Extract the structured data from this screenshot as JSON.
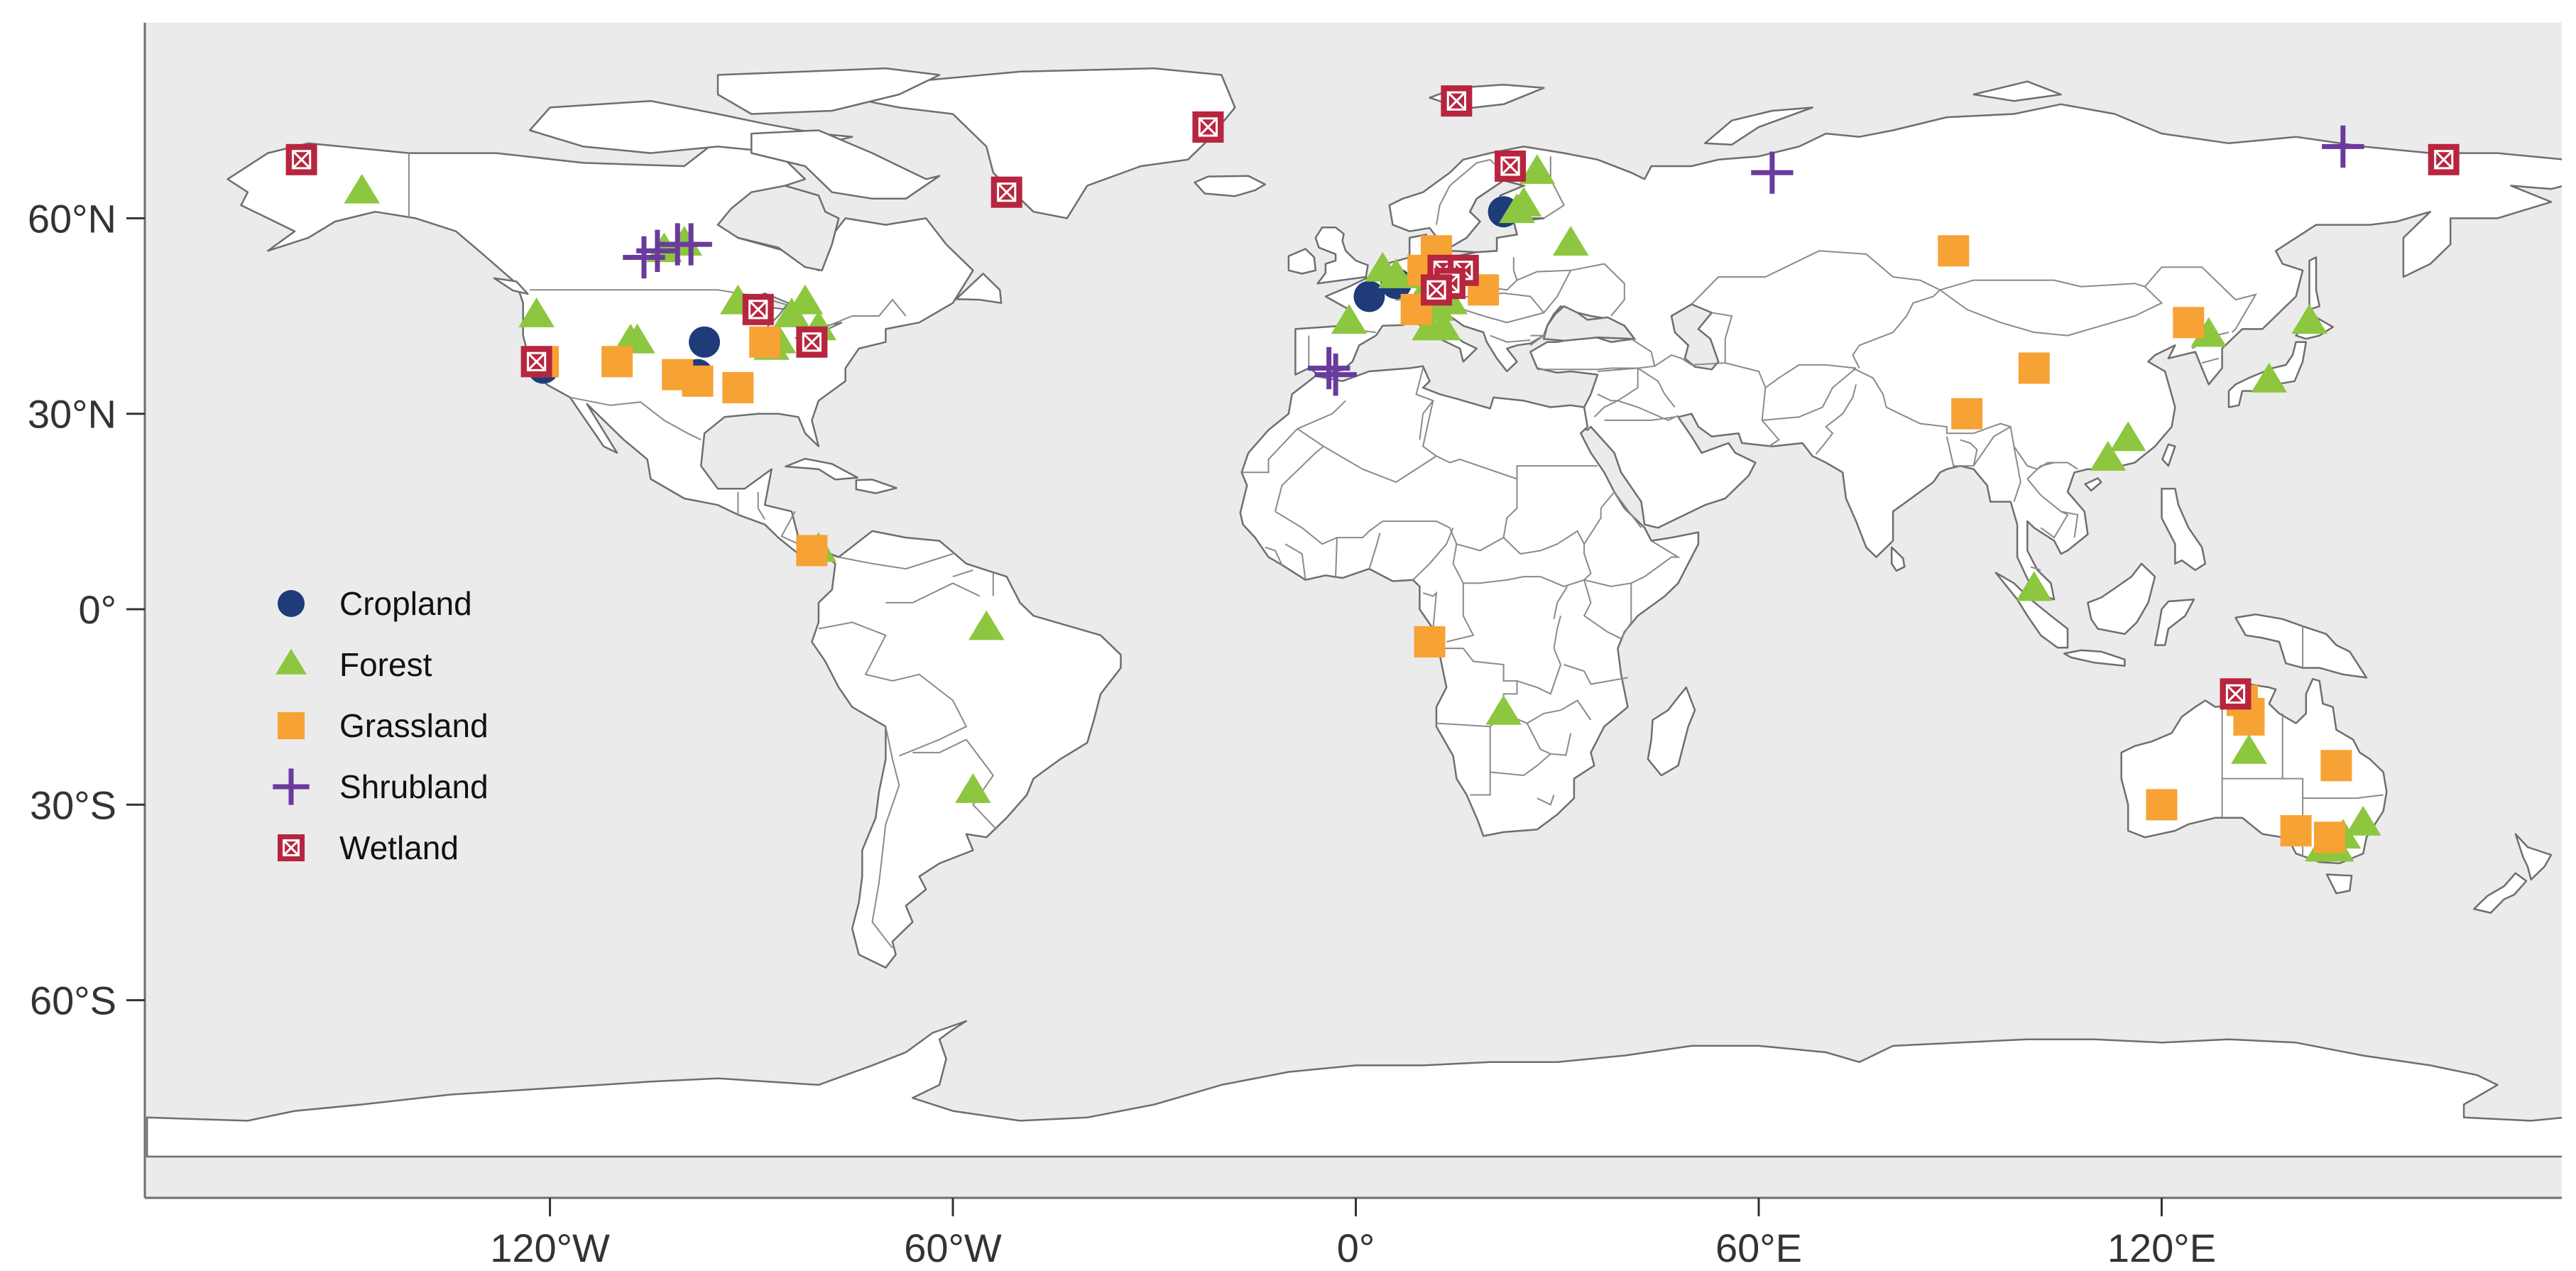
{
  "map": {
    "type": "scatter-map",
    "projection": "equirectangular",
    "xlim": [
      -180,
      180
    ],
    "ylim": [
      -90,
      90
    ],
    "x_ticks": [
      {
        "value": -120,
        "label": "120°W"
      },
      {
        "value": -60,
        "label": "60°W"
      },
      {
        "value": 0,
        "label": "0°"
      },
      {
        "value": 60,
        "label": "60°E"
      },
      {
        "value": 120,
        "label": "120°E"
      }
    ],
    "y_ticks": [
      {
        "value": 60,
        "label": "60°N"
      },
      {
        "value": 30,
        "label": "30°N"
      },
      {
        "value": 0,
        "label": "0°"
      },
      {
        "value": -30,
        "label": "30°S"
      },
      {
        "value": -60,
        "label": "60°S"
      }
    ],
    "colors": {
      "ocean": "#ebebeb",
      "land": "#ffffff",
      "Cropland": "#1f3b7a",
      "Forest": "#8dc63f",
      "Grassland": "#f7a234",
      "Shrubland": "#6a3a9c",
      "Wetland": "#b7253f"
    },
    "legend": {
      "placement": "left-middle",
      "entries": [
        {
          "name": "Cropland",
          "marker": "circle"
        },
        {
          "name": "Forest",
          "marker": "triangle"
        },
        {
          "name": "Grassland",
          "marker": "square"
        },
        {
          "name": "Shrubland",
          "marker": "plus"
        },
        {
          "name": "Wetland",
          "marker": "boxed-x"
        }
      ]
    }
  },
  "chart_data": {
    "type": "scatter",
    "series": [
      {
        "name": "Cropland",
        "points": [
          [
            -121,
            37
          ],
          [
            -98,
            36
          ],
          [
            -97,
            41
          ],
          [
            2,
            48
          ],
          [
            6,
            50
          ],
          [
            22,
            61
          ]
        ]
      },
      {
        "name": "Forest",
        "points": [
          [
            -148,
            64
          ],
          [
            -122,
            45
          ],
          [
            -108,
            41
          ],
          [
            -107,
            41
          ],
          [
            -103,
            55
          ],
          [
            -100,
            56
          ],
          [
            -92,
            47
          ],
          [
            -87,
            40
          ],
          [
            -84,
            45
          ],
          [
            -82,
            47
          ],
          [
            -80,
            43
          ],
          [
            -86,
            41
          ],
          [
            -80,
            9
          ],
          [
            -55,
            -3
          ],
          [
            -57,
            -28
          ],
          [
            -1,
            44
          ],
          [
            4,
            52
          ],
          [
            6,
            51
          ],
          [
            9,
            51
          ],
          [
            11,
            49
          ],
          [
            12,
            46
          ],
          [
            11,
            43
          ],
          [
            13,
            43
          ],
          [
            14,
            47
          ],
          [
            10,
            48
          ],
          [
            24,
            61
          ],
          [
            25,
            62
          ],
          [
            27,
            67
          ],
          [
            32,
            56
          ],
          [
            22,
            -16
          ],
          [
            101,
            3
          ],
          [
            112,
            23
          ],
          [
            115,
            26
          ],
          [
            127,
            42
          ],
          [
            136,
            35
          ],
          [
            142,
            44
          ],
          [
            133,
            -22
          ],
          [
            144,
            -37
          ],
          [
            147,
            -35
          ],
          [
            150,
            -33
          ],
          [
            146,
            -37
          ]
        ]
      },
      {
        "name": "Grassland",
        "points": [
          [
            -121,
            38
          ],
          [
            -110,
            38
          ],
          [
            -101,
            36
          ],
          [
            -98,
            35
          ],
          [
            -92,
            34
          ],
          [
            -88,
            41
          ],
          [
            -81,
            9
          ],
          [
            -22,
            74
          ],
          [
            9,
            46
          ],
          [
            12,
            55
          ],
          [
            10,
            52
          ],
          [
            19,
            49
          ],
          [
            11,
            -5
          ],
          [
            89,
            55
          ],
          [
            91,
            30
          ],
          [
            101,
            37
          ],
          [
            124,
            44
          ],
          [
            132,
            -14
          ],
          [
            133,
            -16
          ],
          [
            133,
            -17
          ],
          [
            146,
            -24
          ],
          [
            120,
            -30
          ],
          [
            140,
            -34
          ],
          [
            145,
            -35
          ]
        ]
      },
      {
        "name": "Shrubland",
        "points": [
          [
            -106,
            54
          ],
          [
            -104,
            55
          ],
          [
            -101,
            56
          ],
          [
            -99,
            56
          ],
          [
            -4,
            37
          ],
          [
            -3,
            36
          ],
          [
            62,
            67
          ],
          [
            147,
            71
          ]
        ]
      },
      {
        "name": "Wetland",
        "points": [
          [
            -157,
            69
          ],
          [
            -122,
            38
          ],
          [
            -89,
            46
          ],
          [
            -81,
            41
          ],
          [
            -52,
            64
          ],
          [
            -22,
            74
          ],
          [
            15,
            78
          ],
          [
            23,
            68
          ],
          [
            13,
            52
          ],
          [
            16,
            52
          ],
          [
            14,
            50
          ],
          [
            12,
            49
          ],
          [
            162,
            69
          ],
          [
            131,
            -13
          ]
        ]
      }
    ]
  }
}
